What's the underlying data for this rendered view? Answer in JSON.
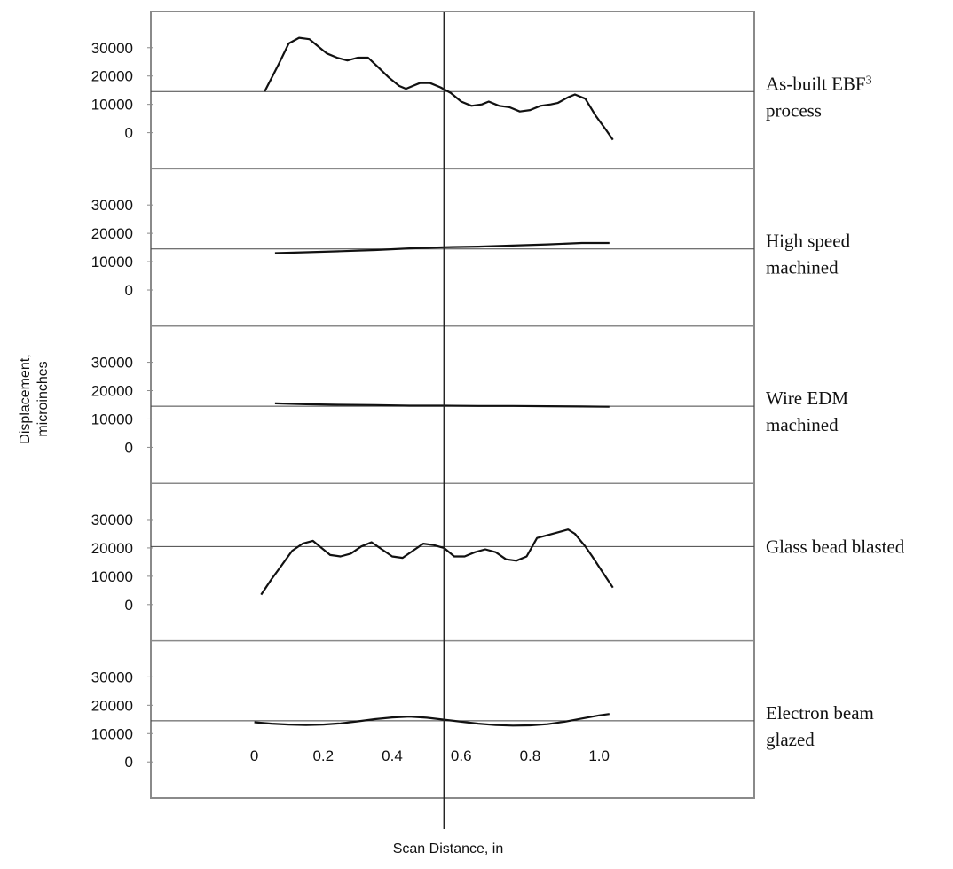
{
  "chart_data": {
    "type": "line",
    "title": "",
    "xlabel": "Scan Distance, in",
    "ylabel_lines": [
      "Displacement,",
      "microinches"
    ],
    "x_ticks": [
      0,
      0.2,
      0.4,
      0.6,
      0.8,
      1.0
    ],
    "x_tick_labels": [
      "0",
      "0.2",
      "0.4",
      "0.6",
      "0.8",
      "1.0"
    ],
    "xlim": [
      -0.3,
      1.45
    ],
    "y_ticks": [
      0,
      10000,
      20000,
      30000
    ],
    "y_tick_labels": [
      "0",
      "10000",
      "20000",
      "30000"
    ],
    "ylim": [
      -4000,
      34000
    ],
    "reference_line_y": 14500,
    "scan_marker_x": 0.55,
    "grid": false,
    "line_color": "#111111",
    "frame_color": "#8a8a8a",
    "panels": [
      {
        "label_lines": [
          "As-built EBF",
          "process"
        ],
        "label_superscript": "3",
        "reference_line_y": 14500,
        "series": [
          {
            "x": [
              0.03,
              0.07,
              0.1,
              0.13,
              0.16,
              0.18,
              0.21,
              0.24,
              0.27,
              0.3,
              0.33,
              0.36,
              0.39,
              0.42,
              0.44,
              0.46,
              0.48,
              0.51,
              0.54,
              0.57,
              0.6,
              0.63,
              0.66,
              0.68,
              0.71,
              0.74,
              0.77,
              0.8,
              0.83,
              0.86,
              0.88,
              0.91,
              0.93,
              0.96,
              0.99,
              1.02,
              1.04
            ],
            "y": [
              14500,
              24000,
              31500,
              33500,
              33000,
              31000,
              28000,
              26500,
              25500,
              26500,
              26500,
              23000,
              19500,
              16500,
              15500,
              16500,
              17500,
              17500,
              16000,
              14000,
              11000,
              9500,
              10000,
              11000,
              9500,
              9000,
              7500,
              8000,
              9500,
              10000,
              10500,
              12500,
              13500,
              12000,
              6000,
              1000,
              -2500
            ]
          }
        ]
      },
      {
        "label_lines": [
          "High speed",
          "machined"
        ],
        "reference_line_y": 14500,
        "series": [
          {
            "x": [
              0.06,
              0.15,
              0.25,
              0.35,
              0.45,
              0.55,
              0.65,
              0.75,
              0.85,
              0.95,
              1.03
            ],
            "y": [
              13000,
              13300,
              13700,
              14100,
              14700,
              15100,
              15300,
              15700,
              16100,
              16600,
              16600
            ]
          }
        ]
      },
      {
        "label_lines": [
          "Wire EDM",
          "machined"
        ],
        "reference_line_y": 14500,
        "series": [
          {
            "x": [
              0.06,
              0.15,
              0.25,
              0.35,
              0.45,
              0.55,
              0.65,
              0.75,
              0.85,
              0.95,
              1.03
            ],
            "y": [
              15500,
              15200,
              15000,
              14900,
              14700,
              14700,
              14600,
              14600,
              14500,
              14400,
              14300
            ]
          }
        ]
      },
      {
        "label_lines": [
          "Glass bead blasted"
        ],
        "reference_line_y": 20500,
        "series": [
          {
            "x": [
              0.02,
              0.05,
              0.08,
              0.11,
              0.14,
              0.17,
              0.19,
              0.22,
              0.25,
              0.28,
              0.31,
              0.34,
              0.37,
              0.4,
              0.43,
              0.46,
              0.49,
              0.52,
              0.55,
              0.58,
              0.61,
              0.64,
              0.67,
              0.7,
              0.73,
              0.76,
              0.79,
              0.82,
              0.85,
              0.88,
              0.91,
              0.93,
              0.96,
              0.98,
              1.01,
              1.04
            ],
            "y": [
              3500,
              9000,
              14000,
              19000,
              21500,
              22500,
              20500,
              17500,
              17000,
              18000,
              20500,
              22000,
              19500,
              17000,
              16500,
              19000,
              21500,
              21000,
              20000,
              17000,
              17000,
              18500,
              19500,
              18500,
              16000,
              15500,
              17000,
              23500,
              24500,
              25500,
              26500,
              25000,
              20500,
              17000,
              11500,
              6000
            ]
          }
        ]
      },
      {
        "label_lines": [
          "Electron beam",
          "glazed"
        ],
        "reference_line_y": 14500,
        "series": [
          {
            "x": [
              0.0,
              0.05,
              0.1,
              0.15,
              0.2,
              0.25,
              0.3,
              0.35,
              0.4,
              0.45,
              0.5,
              0.55,
              0.6,
              0.65,
              0.7,
              0.75,
              0.8,
              0.85,
              0.9,
              0.95,
              1.0,
              1.03
            ],
            "y": [
              14000,
              13500,
              13200,
              13000,
              13200,
              13600,
              14300,
              15100,
              15700,
              16000,
              15600,
              14900,
              14200,
              13500,
              13000,
              12800,
              12900,
              13300,
              14200,
              15300,
              16400,
              16900
            ]
          }
        ]
      }
    ]
  }
}
